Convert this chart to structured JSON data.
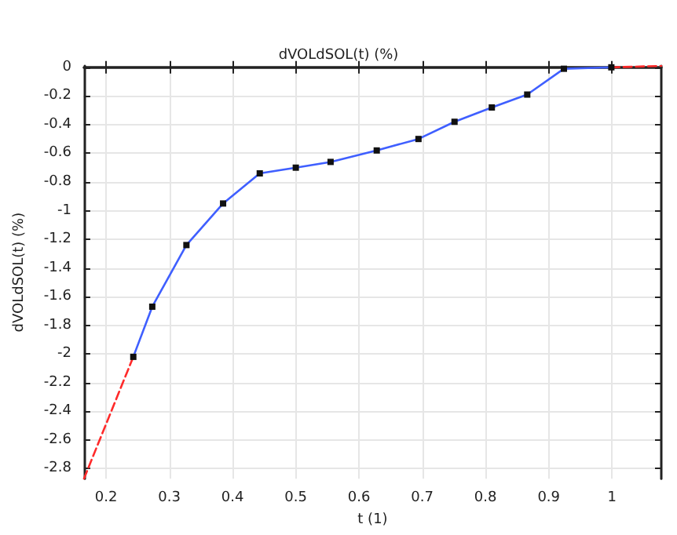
{
  "chart_data": {
    "type": "line",
    "title": "dVOLdSOL(t) (%)",
    "xlabel": "t (1)",
    "ylabel": "dVOLdSOL(t) (%)",
    "series": [
      {
        "color": "#ff2a2a",
        "line_style": "dashed",
        "x": [
          0.165,
          0.243
        ],
        "values": [
          -2.87,
          -2.02
        ]
      },
      {
        "color": "#3f5fff",
        "line_style": "solid",
        "marker": "square",
        "x": [
          0.243,
          0.273,
          0.327,
          0.385,
          0.443,
          0.5,
          0.555,
          0.628,
          0.694,
          0.751,
          0.81,
          0.866,
          0.924,
          0.999
        ],
        "values": [
          -2.02,
          -1.67,
          -1.24,
          -0.95,
          -0.74,
          -0.7,
          -0.66,
          -0.58,
          -0.5,
          -0.38,
          -0.28,
          -0.19,
          -0.01,
          0
        ]
      },
      {
        "color": "#ff2a2a",
        "line_style": "dashed",
        "x": [
          0.999,
          1.078
        ],
        "values": [
          0,
          0.01
        ]
      }
    ],
    "xlim": [
      0.165,
      1.078
    ],
    "xticks": [
      0.2,
      0.3,
      0.4,
      0.5,
      0.6,
      0.7,
      0.8,
      0.9,
      1
    ],
    "ylim": [
      -2.87,
      0.01
    ],
    "yticks": [
      0,
      -0.2,
      -0.4,
      -0.6,
      -0.8,
      -1,
      -1.2,
      -1.4,
      -1.6,
      -1.8,
      -2,
      -2.2,
      -2.4,
      -2.6,
      -2.8
    ],
    "grid": true
  }
}
